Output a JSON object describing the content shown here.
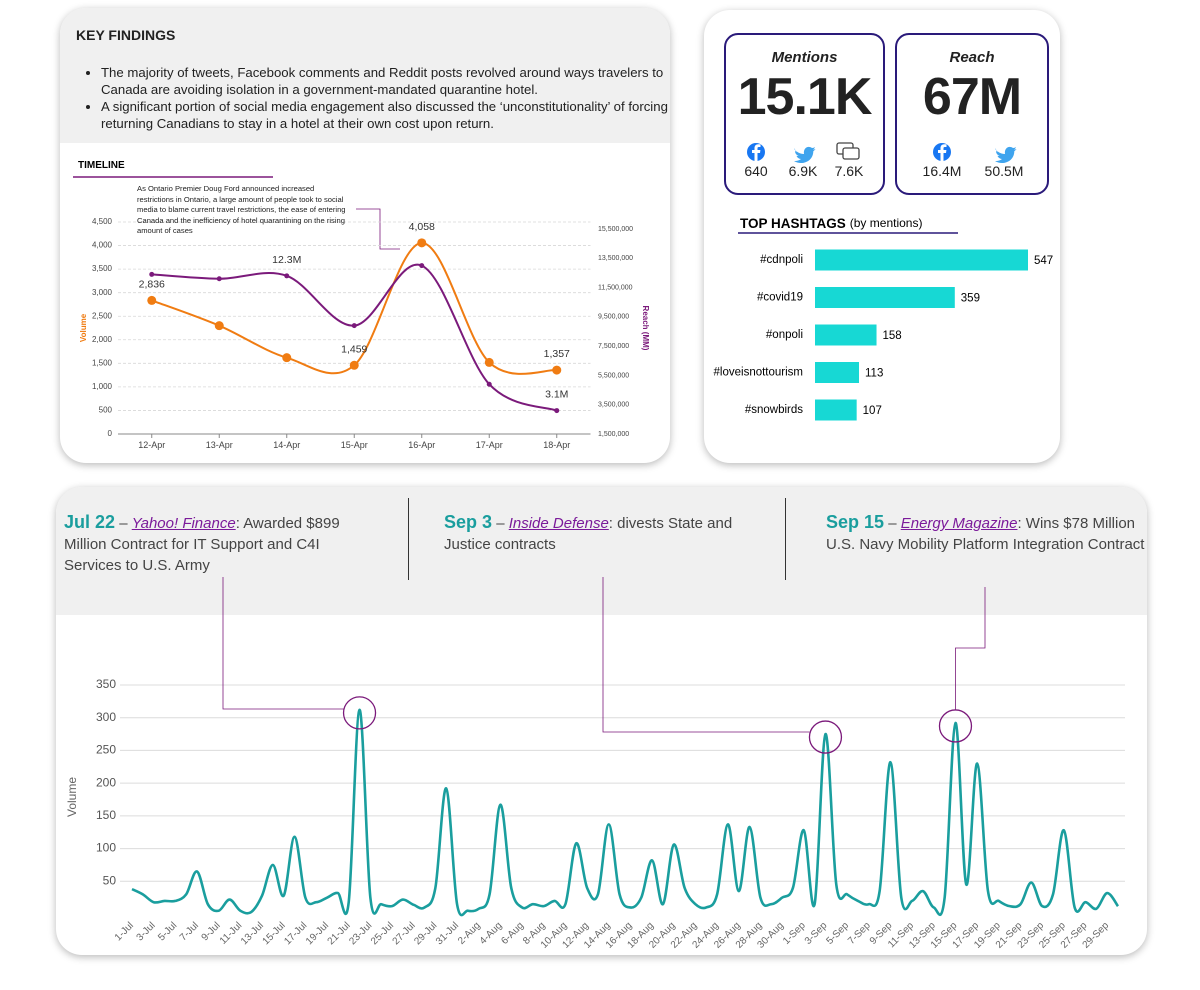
{
  "key_findings": {
    "title": "KEY FINDINGS",
    "bullets": [
      "The majority of tweets, Facebook comments and Reddit posts revolved around ways travelers to Canada are avoiding isolation in a government-mandated quarantine hotel.",
      "A significant portion of social media engagement also discussed the ‘unconstitutionality’ of forcing returning Canadians to stay in a hotel at their own cost upon return."
    ]
  },
  "stats": {
    "mentions": {
      "label": "Mentions",
      "value": "15.1K",
      "channels": [
        "640",
        "6.9K",
        "7.6K"
      ]
    },
    "reach": {
      "label": "Reach",
      "value": "67M",
      "channels": [
        "16.4M",
        "50.5M"
      ]
    }
  },
  "chart_data": [
    {
      "type": "line",
      "title": "TIMELINE",
      "annotation": "As Ontario Premier Doug Ford announced increased restrictions in Ontario, a large amount of people took to social media to blame current travel restrictions, the ease of entering Canada and the inefficiency of hotel quarantining on the rising amount of cases",
      "y_label": "Volume",
      "y2_label": "Reach (MM)",
      "categories": [
        "12-Apr",
        "13-Apr",
        "14-Apr",
        "15-Apr",
        "16-Apr",
        "17-Apr",
        "18-Apr"
      ],
      "series": [
        {
          "color": "#f07c12",
          "values": [
            2836,
            2300,
            1620,
            1459,
            4058,
            1520,
            1357
          ],
          "value_labels": [
            "2,836",
            null,
            null,
            "1,459",
            "4,058",
            null,
            "1,357"
          ]
        },
        {
          "color": "#7b1a7b",
          "axis": "y2",
          "values": [
            12400000,
            12100000,
            12300000,
            8900000,
            13000000,
            4900000,
            3100000
          ],
          "value_labels": [
            null,
            null,
            "12.3M",
            null,
            null,
            null,
            "3.1M"
          ]
        }
      ],
      "ylim": [
        0,
        4500
      ],
      "yticks": [
        0,
        500,
        {
          "value": 1000,
          "label": "1,000"
        },
        {
          "value": 1500,
          "label": "1,500"
        },
        {
          "value": 2000,
          "label": "2,000"
        },
        {
          "value": 2500,
          "label": "2,500"
        },
        {
          "value": 3000,
          "label": "3,000"
        },
        {
          "value": 3500,
          "label": "3,500"
        },
        {
          "value": 4000,
          "label": "4,000"
        },
        {
          "value": 4500,
          "label": "4,500"
        }
      ],
      "y2lim": [
        1500000,
        15500000
      ],
      "y2ticks": [
        {
          "value": 1500000,
          "label": "1,500,000"
        },
        {
          "value": 3500000,
          "label": "3,500,000"
        },
        {
          "value": 5500000,
          "label": "5,500,000"
        },
        {
          "value": 7500000,
          "label": "7,500,000"
        },
        {
          "value": 9500000,
          "label": "9,500,000"
        },
        {
          "value": 11500000,
          "label": "11,500,000"
        },
        {
          "value": 13500000,
          "label": "13,500,000"
        },
        {
          "value": 15500000,
          "label": "15,500,000"
        }
      ],
      "grid": true
    },
    {
      "type": "hbar",
      "title": "TOP HASHTAGS",
      "subtitle": "(by mentions)",
      "categories": [
        "#cdnpoli",
        "#covid19",
        "#onpoli",
        "#loveisnottourism",
        "#snowbirds"
      ],
      "values": [
        547,
        359,
        158,
        113,
        107
      ],
      "color": "#17d8d4"
    },
    {
      "type": "line",
      "y_label": "Volume",
      "categories": [
        "1-Jul",
        null,
        "3-Jul",
        null,
        "5-Jul",
        null,
        "7-Jul",
        null,
        "9-Jul",
        null,
        "11-Jul",
        null,
        "13-Jul",
        null,
        "15-Jul",
        null,
        "17-Jul",
        null,
        "19-Jul",
        null,
        "21-Jul",
        null,
        "23-Jul",
        null,
        "25-Jul",
        null,
        "27-Jul",
        null,
        "29-Jul",
        null,
        "31-Jul",
        null,
        "2-Aug",
        null,
        "4-Aug",
        null,
        "6-Aug",
        null,
        "8-Aug",
        null,
        "10-Aug",
        null,
        "12-Aug",
        null,
        "14-Aug",
        null,
        "16-Aug",
        null,
        "18-Aug",
        null,
        "20-Aug",
        null,
        "22-Aug",
        null,
        "24-Aug",
        null,
        "26-Aug",
        null,
        "28-Aug",
        null,
        "30-Aug",
        null,
        "1-Sep",
        null,
        "3-Sep",
        null,
        "5-Sep",
        null,
        "7-Sep",
        null,
        "9-Sep",
        null,
        "11-Sep",
        null,
        "13-Sep",
        null,
        "15-Sep",
        null,
        "17-Sep",
        null,
        "19-Sep",
        null,
        "21-Sep",
        null,
        "23-Sep",
        null,
        "25-Sep",
        null,
        "27-Sep",
        null,
        "29-Sep",
        null
      ],
      "values": [
        38,
        30,
        18,
        20,
        20,
        30,
        65,
        15,
        5,
        22,
        5,
        3,
        28,
        75,
        28,
        118,
        25,
        18,
        25,
        32,
        18,
        312,
        25,
        15,
        12,
        22,
        14,
        10,
        40,
        192,
        15,
        5,
        8,
        30,
        167,
        40,
        10,
        15,
        12,
        20,
        15,
        108,
        40,
        30,
        137,
        30,
        10,
        25,
        82,
        15,
        106,
        40,
        15,
        10,
        30,
        137,
        35,
        133,
        25,
        15,
        25,
        40,
        128,
        15,
        275,
        45,
        30,
        20,
        15,
        35,
        232,
        25,
        20,
        35,
        10,
        25,
        292,
        45,
        230,
        35,
        20,
        12,
        15,
        48,
        12,
        30,
        128,
        10,
        18,
        8,
        32,
        12
      ],
      "color": "#1a9e9e",
      "ylim": [
        0,
        350
      ],
      "yticks": [
        50,
        100,
        150,
        200,
        250,
        300,
        350
      ],
      "grid": true,
      "annotations": [
        {
          "date": "Jul 22",
          "separator": "–",
          "source": "Yahoo! Finance",
          "text": ": Awarded $899 Million Contract for IT Support and C4I Services to U.S. Army"
        },
        {
          "date": "Sep 3",
          "separator": "–",
          "source": "Inside Defense",
          "text": ": divests State and Justice contracts"
        },
        {
          "date": "Sep 15",
          "separator": "–",
          "source": "Energy Magazine",
          "text": ": Wins $78 Million U.S. Navy Mobility Platform Integration Contract"
        }
      ]
    }
  ]
}
